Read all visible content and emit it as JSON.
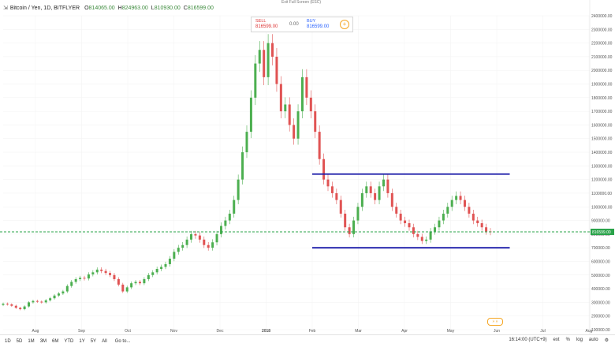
{
  "header": {
    "symbol_icon": "chart-symbol-icon",
    "title": "Bitcoin / Yen, 1D, BITFLYER",
    "ohlc": [
      {
        "k": "O",
        "v": "814065.00"
      },
      {
        "k": "H",
        "v": "824963.00"
      },
      {
        "k": "L",
        "v": "810930.00"
      },
      {
        "k": "C",
        "v": "816599.00"
      }
    ],
    "exit_fullscreen": "Exit Full Screen (ESC)"
  },
  "trade": {
    "sell_label": "SELL",
    "sell_price": "816599.00",
    "spread": "0.00",
    "buy_label": "BUY",
    "buy_price": "816599.00"
  },
  "chart_data": {
    "type": "candlestick",
    "y_ticks": [
      "2400000.00",
      "2300000.00",
      "2200000.00",
      "2100000.00",
      "2000000.00",
      "1900000.00",
      "1800000.00",
      "1700000.00",
      "1600000.00",
      "1500000.00",
      "1400000.00",
      "1300000.00",
      "1200000.00",
      "1100000.00",
      "1000000.00",
      "900000.00",
      "800000.00",
      "700000.00",
      "600000.00",
      "500000.00",
      "400000.00",
      "300000.00",
      "200000.00",
      "100000.00"
    ],
    "x_ticks": [
      "Aug",
      "Sep",
      "Oct",
      "Nov",
      "Dec",
      "2018",
      "Feb",
      "Mar",
      "Apr",
      "May",
      "Jun",
      "Jul",
      "Aug"
    ],
    "ylim": [
      100000,
      2400000
    ],
    "last_price_label": "816599.00",
    "current_price": 816599,
    "lines": [
      {
        "name": "upper-line",
        "from": [
          "Feb",
          "1240000"
        ],
        "to": [
          "Jul",
          "1240000"
        ],
        "color": "#1a1aa8"
      },
      {
        "name": "lower-line",
        "from": [
          "Feb",
          "700000"
        ],
        "to": [
          "Jul",
          "700000"
        ],
        "color": "#1a1aa8"
      }
    ],
    "up_color": "#4caf50",
    "down_color": "#e05353",
    "closes": [
      290000,
      285000,
      275000,
      260000,
      250000,
      270000,
      300000,
      310000,
      305000,
      300000,
      315000,
      330000,
      350000,
      365000,
      380000,
      420000,
      450000,
      470000,
      480000,
      475000,
      505000,
      520000,
      540000,
      530000,
      515000,
      500000,
      470000,
      430000,
      380000,
      410000,
      440000,
      450000,
      440000,
      470000,
      500000,
      520000,
      545000,
      560000,
      580000,
      620000,
      670000,
      700000,
      720000,
      760000,
      800000,
      790000,
      760000,
      720000,
      700000,
      740000,
      800000,
      860000,
      900000,
      950000,
      1050000,
      1200000,
      1400000,
      1550000,
      1800000,
      2050000,
      2150000,
      1950000,
      2200000,
      2100000,
      1900000,
      1700000,
      1750000,
      1600000,
      1500000,
      1700000,
      1950000,
      1800000,
      1700000,
      1550000,
      1350000,
      1200000,
      1150000,
      1100000,
      1050000,
      950000,
      850000,
      800000,
      900000,
      1000000,
      1100000,
      1150000,
      1100000,
      1050000,
      1150000,
      1200000,
      1100000,
      1000000,
      950000,
      900000,
      880000,
      850000,
      800000,
      780000,
      750000,
      760000,
      820000,
      850000,
      900000,
      950000,
      1000000,
      1050000,
      1080000,
      1050000,
      1000000,
      950000,
      900000,
      880000,
      850000,
      820000,
      816599
    ]
  },
  "bottom": {
    "ranges": [
      "1D",
      "5D",
      "1M",
      "3M",
      "6M",
      "YTD",
      "1Y",
      "5Y",
      "All"
    ],
    "goto": "Go to...",
    "time": "16:14:00 (UTC+9)",
    "pct": "%",
    "log": "log",
    "auto": "auto",
    "ext": "ext",
    "settings_icon": "gear-icon"
  }
}
